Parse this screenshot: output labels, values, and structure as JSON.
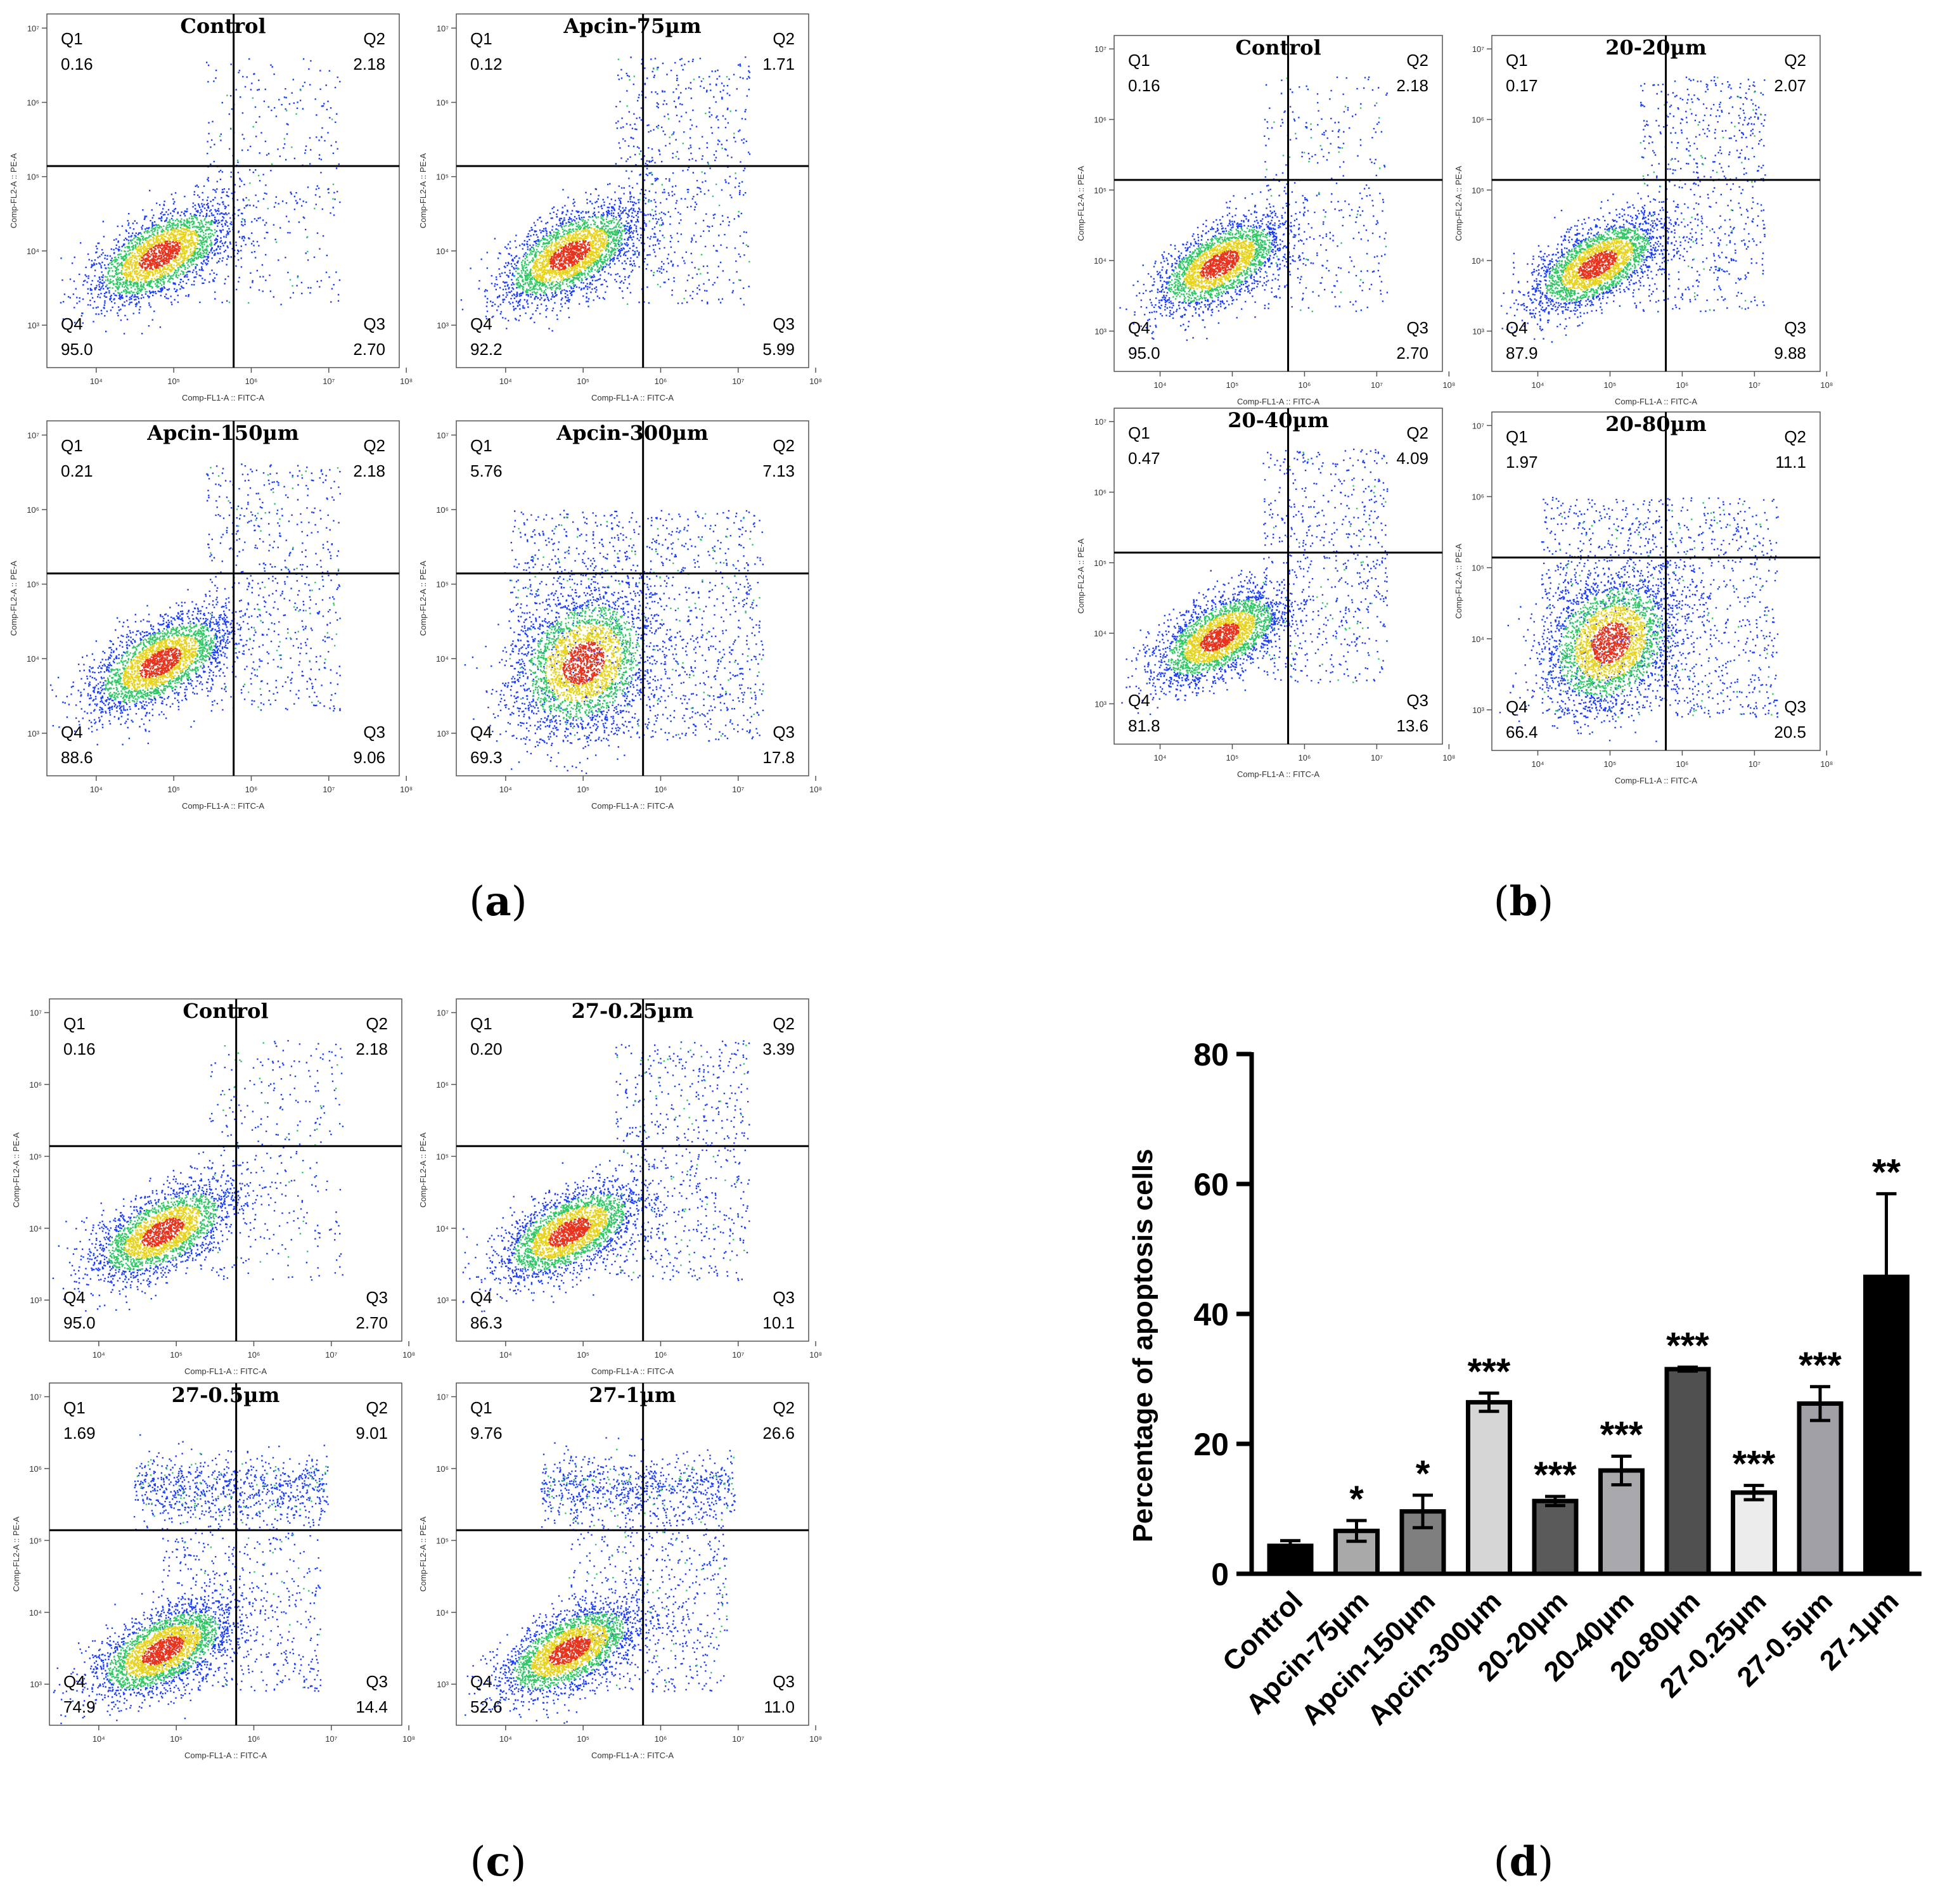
{
  "panels": [
    {
      "label": "a",
      "plots": [
        {
          "title": "Control",
          "Q1": "0.16",
          "Q2": "2.18",
          "Q3": "2.70",
          "Q4": "95.0",
          "pattern": "control"
        },
        {
          "title": "Apcin-75µm",
          "Q1": "0.12",
          "Q2": "1.71",
          "Q3": "5.99",
          "Q4": "92.2",
          "pattern": "mild"
        },
        {
          "title": "Apcin-150µm",
          "Q1": "0.21",
          "Q2": "2.18",
          "Q3": "9.06",
          "Q4": "88.6",
          "pattern": "mild"
        },
        {
          "title": "Apcin-300µm",
          "Q1": "5.76",
          "Q2": "7.13",
          "Q3": "17.8",
          "Q4": "69.3",
          "pattern": "spread"
        }
      ]
    },
    {
      "label": "b",
      "plots": [
        {
          "title": "Control",
          "Q1": "0.16",
          "Q2": "2.18",
          "Q3": "2.70",
          "Q4": "95.0",
          "pattern": "control"
        },
        {
          "title": "20-20µm",
          "Q1": "0.17",
          "Q2": "2.07",
          "Q3": "9.88",
          "Q4": "87.9",
          "pattern": "mild"
        },
        {
          "title": "20-40µm",
          "Q1": "0.47",
          "Q2": "4.09",
          "Q3": "13.6",
          "Q4": "81.8",
          "pattern": "mild"
        },
        {
          "title": "20-80µm",
          "Q1": "1.97",
          "Q2": "11.1",
          "Q3": "20.5",
          "Q4": "66.4",
          "pattern": "spread"
        }
      ]
    },
    {
      "label": "c",
      "plots": [
        {
          "title": "Control",
          "Q1": "0.16",
          "Q2": "2.18",
          "Q3": "2.70",
          "Q4": "95.0",
          "pattern": "control"
        },
        {
          "title": "27-0.25µm",
          "Q1": "0.20",
          "Q2": "3.39",
          "Q3": "10.1",
          "Q4": "86.3",
          "pattern": "mild"
        },
        {
          "title": "27-0.5µm",
          "Q1": "1.69",
          "Q2": "9.01",
          "Q3": "14.4",
          "Q4": "74.9",
          "pattern": "late"
        },
        {
          "title": "27-1µm",
          "Q1": "9.76",
          "Q2": "26.6",
          "Q3": "11.0",
          "Q4": "52.6",
          "pattern": "late"
        }
      ]
    }
  ],
  "axis_labels": {
    "x": "Comp-FL1-A :: FITC-A",
    "y": "Comp-FL2-A :: PE-A"
  },
  "ticks": {
    "x": [
      "10⁴",
      "10⁵",
      "10⁶",
      "10⁷",
      "10⁸"
    ],
    "y": [
      "10³",
      "10⁴",
      "10⁵",
      "10⁶",
      "10⁷"
    ]
  },
  "quadrant_names": [
    "Q1",
    "Q2",
    "Q3",
    "Q4"
  ],
  "panel_d_label": "d",
  "chart_data": {
    "type": "bar",
    "title": "",
    "ylabel": "Percentage of apoptosis cells",
    "xlabel": "",
    "ylim": [
      0,
      80
    ],
    "yticks": [
      0,
      20,
      40,
      60,
      80
    ],
    "categories": [
      "Control",
      "Apcin-75μm",
      "Apcin-150μm",
      "Apcin-300μm",
      "20-20μm",
      "20-40μm",
      "20-80μm",
      "27-0.25μm",
      "27-0.5μm",
      "27-1μm"
    ],
    "values": [
      4.3,
      6.6,
      9.6,
      26.4,
      11.2,
      15.9,
      31.5,
      12.5,
      26.2,
      45.7
    ],
    "errors": [
      0.8,
      1.6,
      2.5,
      1.4,
      0.7,
      2.2,
      0.3,
      1.1,
      2.6,
      12.8
    ],
    "significance": [
      "",
      "*",
      "*",
      "***",
      "***",
      "***",
      "***",
      "***",
      "***",
      "**"
    ],
    "colors": [
      "#000000",
      "#a9a9a9",
      "#7f7f7f",
      "#d6d6d6",
      "#5a5a5a",
      "#a9a9ad",
      "#505050",
      "#ececec",
      "#a0a0a6",
      "#000000"
    ]
  }
}
